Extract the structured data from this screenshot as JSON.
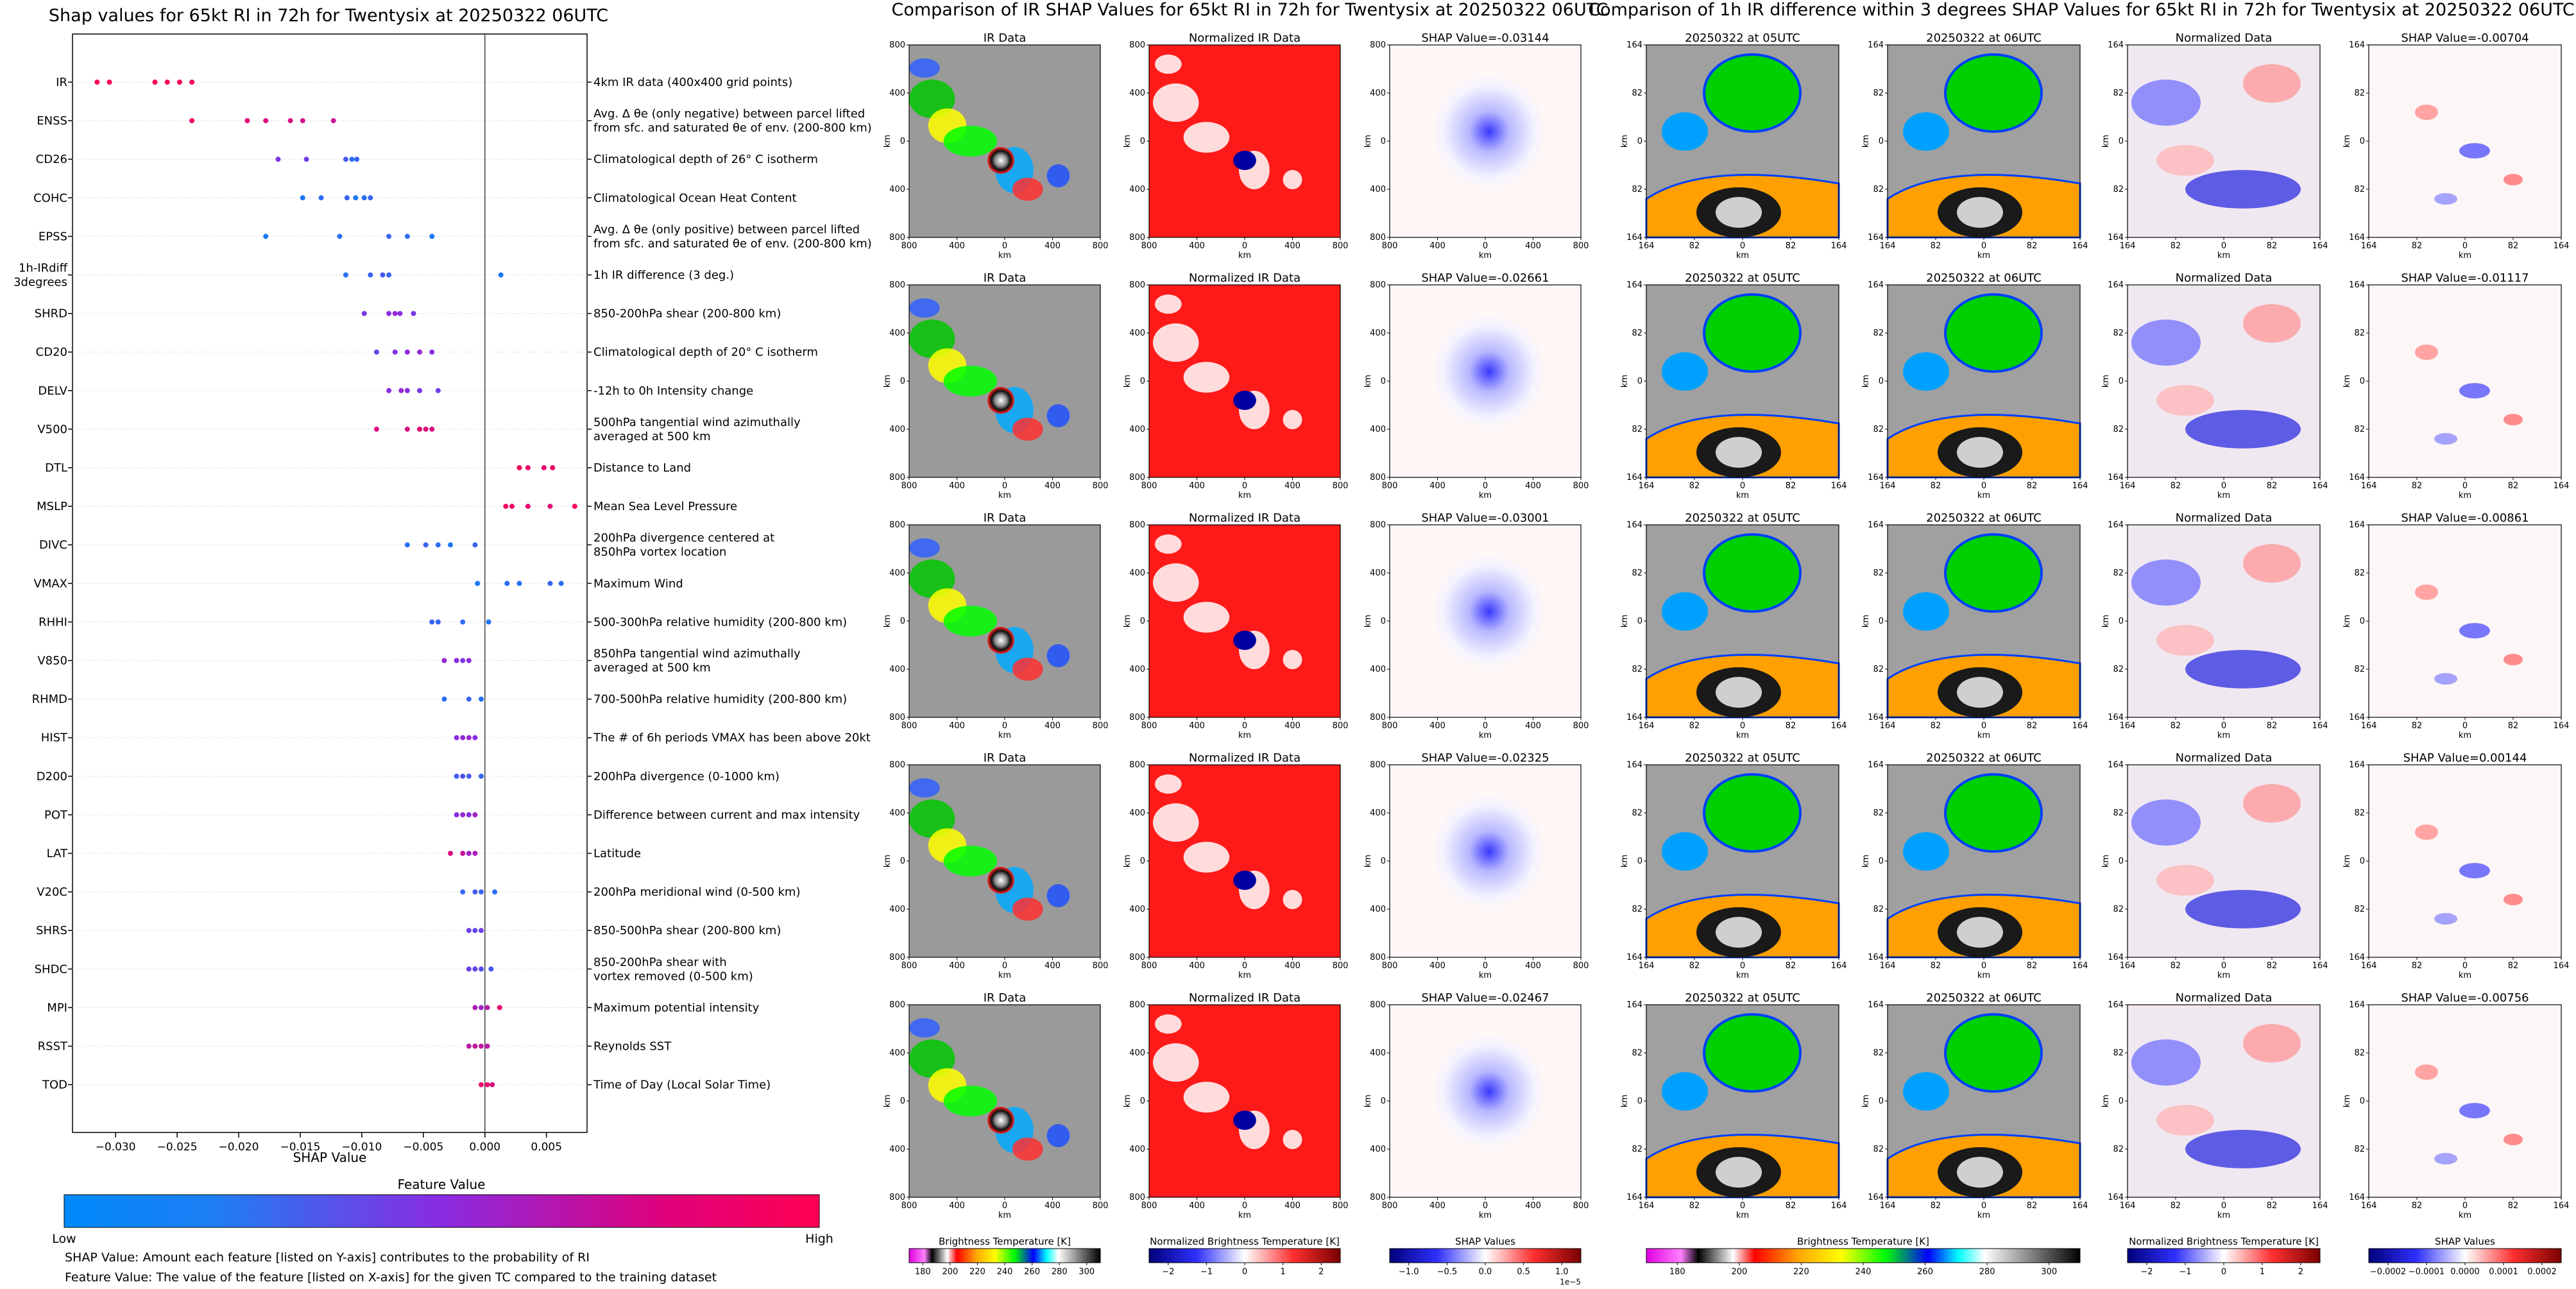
{
  "colors": {
    "feature_low": "#008afb",
    "feature_mid": "#8a2be2",
    "feature_high": "#ff0052",
    "axis": "#000000",
    "gridline": "#d9d9d9"
  },
  "chart_data": [
    {
      "type": "scatter",
      "name": "shap-beeswarm",
      "title": "Shap values for 65kt RI in 72h for Twentysix at 20250322 06UTC",
      "xlabel": "SHAP Value",
      "xlim": [
        -0.0335,
        0.0083
      ],
      "xticks": [
        -0.03,
        -0.025,
        -0.02,
        -0.015,
        -0.01,
        -0.005,
        0.0,
        0.005
      ],
      "xtick_labels": [
        "−0.030",
        "−0.025",
        "−0.020",
        "−0.015",
        "−0.010",
        "−0.005",
        "0.000",
        "0.005"
      ],
      "colorbar": {
        "title": "Feature Value",
        "low_label": "Low",
        "high_label": "High"
      },
      "notes": [
        "SHAP Value: Amount each feature [listed on Y-axis] contributes to the probability of RI",
        "Feature Value: The value of the feature [listed on X-axis] for the given TC compared to the training dataset"
      ],
      "features": [
        {
          "name": "IR",
          "description": "4km IR data (400x400 grid points)",
          "points": [
            [
              -0.0315,
              0.96
            ],
            [
              -0.0305,
              0.97
            ],
            [
              -0.0268,
              0.98
            ],
            [
              -0.0258,
              0.95
            ],
            [
              -0.0248,
              0.96
            ],
            [
              -0.0238,
              0.94
            ]
          ]
        },
        {
          "name": "ENSS",
          "description": "Avg. Δ θe (only negative) between parcel lifted\nfrom sfc. and saturated θe of env. (200-800 km)",
          "points": [
            [
              -0.0238,
              0.92
            ],
            [
              -0.0193,
              0.88
            ],
            [
              -0.0178,
              0.85
            ],
            [
              -0.0158,
              0.82
            ],
            [
              -0.0148,
              0.8
            ],
            [
              -0.0123,
              0.78
            ]
          ]
        },
        {
          "name": "CD26",
          "description": "Climatological depth of 26° C isotherm",
          "points": [
            [
              -0.0168,
              0.45
            ],
            [
              -0.0145,
              0.4
            ],
            [
              -0.0113,
              0.25
            ],
            [
              -0.0108,
              0.15
            ],
            [
              -0.0104,
              0.2
            ]
          ]
        },
        {
          "name": "COHC",
          "description": "Climatological Ocean Heat Content",
          "points": [
            [
              -0.0148,
              0.1
            ],
            [
              -0.0133,
              0.15
            ],
            [
              -0.0112,
              0.2
            ],
            [
              -0.0105,
              0.1
            ],
            [
              -0.0098,
              0.15
            ],
            [
              -0.0093,
              0.2
            ]
          ]
        },
        {
          "name": "EPSS",
          "description": "Avg. Δ θe (only positive) between parcel lifted\nfrom sfc. and saturated θe of env. (200-800 km)",
          "points": [
            [
              -0.0178,
              0.1
            ],
            [
              -0.0118,
              0.15
            ],
            [
              -0.0078,
              0.2
            ],
            [
              -0.0063,
              0.15
            ],
            [
              -0.0043,
              0.1
            ]
          ]
        },
        {
          "name": "1h-IRdiff 3degrees",
          "description": "1h IR difference (3 deg.)",
          "points": [
            [
              -0.0113,
              0.15
            ],
            [
              -0.0093,
              0.2
            ],
            [
              -0.0083,
              0.25
            ],
            [
              -0.0078,
              0.2
            ],
            [
              0.0013,
              0.1
            ]
          ]
        },
        {
          "name": "SHRD",
          "description": "850-200hPa shear (200-800 km)",
          "points": [
            [
              -0.0098,
              0.45
            ],
            [
              -0.0078,
              0.5
            ],
            [
              -0.0073,
              0.55
            ],
            [
              -0.0069,
              0.5
            ],
            [
              -0.0058,
              0.45
            ]
          ]
        },
        {
          "name": "CD20",
          "description": "Climatological depth of 20° C isotherm",
          "points": [
            [
              -0.0088,
              0.4
            ],
            [
              -0.0073,
              0.45
            ],
            [
              -0.0063,
              0.5
            ],
            [
              -0.0053,
              0.55
            ],
            [
              -0.0043,
              0.5
            ]
          ]
        },
        {
          "name": "DELV",
          "description": "-12h to 0h Intensity change",
          "points": [
            [
              -0.0078,
              0.5
            ],
            [
              -0.0068,
              0.55
            ],
            [
              -0.0063,
              0.5
            ],
            [
              -0.0053,
              0.45
            ],
            [
              -0.0038,
              0.4
            ]
          ]
        },
        {
          "name": "V500",
          "description": "500hPa tangential wind azimuthally\naveraged at 500 km",
          "points": [
            [
              -0.0088,
              0.85
            ],
            [
              -0.0063,
              0.82
            ],
            [
              -0.0053,
              0.88
            ],
            [
              -0.0048,
              0.86
            ],
            [
              -0.0043,
              0.84
            ]
          ]
        },
        {
          "name": "DTL",
          "description": "Distance to Land",
          "points": [
            [
              0.0028,
              0.95
            ],
            [
              0.0035,
              0.92
            ],
            [
              0.0048,
              0.9
            ],
            [
              0.0055,
              0.93
            ]
          ]
        },
        {
          "name": "MSLP",
          "description": "Mean Sea Level Pressure",
          "points": [
            [
              0.0017,
              0.95
            ],
            [
              0.0022,
              0.92
            ],
            [
              0.0035,
              0.9
            ],
            [
              0.0053,
              0.88
            ],
            [
              0.0073,
              0.95
            ]
          ]
        },
        {
          "name": "DIVC",
          "description": "200hPa divergence centered at\n850hPa vortex location",
          "points": [
            [
              -0.0063,
              0.15
            ],
            [
              -0.0048,
              0.2
            ],
            [
              -0.0038,
              0.15
            ],
            [
              -0.0028,
              0.1
            ],
            [
              -0.0008,
              0.2
            ]
          ]
        },
        {
          "name": "VMAX",
          "description": "Maximum Wind",
          "points": [
            [
              -0.0006,
              0.1
            ],
            [
              0.0018,
              0.15
            ],
            [
              0.0028,
              0.15
            ],
            [
              0.0053,
              0.2
            ],
            [
              0.0062,
              0.15
            ]
          ]
        },
        {
          "name": "RHHI",
          "description": "500-300hPa relative humidity (200-800 km)",
          "points": [
            [
              -0.0043,
              0.2
            ],
            [
              -0.0038,
              0.2
            ],
            [
              -0.0018,
              0.15
            ],
            [
              0.0003,
              0.1
            ]
          ]
        },
        {
          "name": "V850",
          "description": "850hPa tangential wind azimuthally\naveraged at 500 km",
          "points": [
            [
              -0.0033,
              0.55
            ],
            [
              -0.0023,
              0.5
            ],
            [
              -0.0018,
              0.45
            ],
            [
              -0.0013,
              0.5
            ]
          ]
        },
        {
          "name": "RHMD",
          "description": "700-500hPa relative humidity (200-800 km)",
          "points": [
            [
              -0.0033,
              0.15
            ],
            [
              -0.0013,
              0.2
            ],
            [
              -0.0003,
              0.15
            ]
          ]
        },
        {
          "name": "HIST",
          "description": "The # of 6h periods VMAX has been above 20kt",
          "points": [
            [
              -0.0023,
              0.5
            ],
            [
              -0.0018,
              0.52
            ],
            [
              -0.0013,
              0.55
            ],
            [
              -0.0008,
              0.5
            ]
          ]
        },
        {
          "name": "D200",
          "description": "200hPa divergence (0-1000 km)",
          "points": [
            [
              -0.0023,
              0.25
            ],
            [
              -0.0018,
              0.3
            ],
            [
              -0.0013,
              0.25
            ],
            [
              -0.0003,
              0.2
            ]
          ]
        },
        {
          "name": "POT",
          "description": "Difference between current and max intensity",
          "points": [
            [
              -0.0023,
              0.5
            ],
            [
              -0.0018,
              0.55
            ],
            [
              -0.0013,
              0.5
            ],
            [
              -0.0008,
              0.6
            ]
          ]
        },
        {
          "name": "LAT",
          "description": "Latitude",
          "points": [
            [
              -0.0028,
              0.85
            ],
            [
              -0.0018,
              0.75
            ],
            [
              -0.0013,
              0.6
            ],
            [
              -0.0008,
              0.65
            ]
          ]
        },
        {
          "name": "V20C",
          "description": "200hPa meridional wind (0-500 km)",
          "points": [
            [
              -0.0018,
              0.2
            ],
            [
              -0.0008,
              0.25
            ],
            [
              -0.0003,
              0.2
            ],
            [
              0.0008,
              0.15
            ]
          ]
        },
        {
          "name": "SHRS",
          "description": "850-500hPa shear (200-800 km)",
          "points": [
            [
              -0.0013,
              0.4
            ],
            [
              -0.0008,
              0.35
            ],
            [
              -0.0003,
              0.4
            ]
          ]
        },
        {
          "name": "SHDC",
          "description": "850-200hPa shear with\nvortex removed (0-500 km)",
          "points": [
            [
              -0.0013,
              0.4
            ],
            [
              -0.0008,
              0.35
            ],
            [
              -0.0003,
              0.3
            ],
            [
              0.0005,
              0.25
            ]
          ]
        },
        {
          "name": "MPI",
          "description": "Maximum potential intensity",
          "points": [
            [
              -0.0008,
              0.65
            ],
            [
              -0.0003,
              0.6
            ],
            [
              0.0002,
              0.7
            ],
            [
              0.0012,
              0.9
            ]
          ]
        },
        {
          "name": "RSST",
          "description": "Reynolds SST",
          "points": [
            [
              -0.0013,
              0.7
            ],
            [
              -0.0008,
              0.75
            ],
            [
              -0.0003,
              0.75
            ],
            [
              0.0002,
              0.7
            ]
          ]
        },
        {
          "name": "TOD",
          "description": "Time of Day (Local Solar Time)",
          "points": [
            [
              -0.0003,
              0.9
            ],
            [
              0.0002,
              0.9
            ],
            [
              0.0006,
              0.85
            ]
          ]
        }
      ]
    },
    {
      "type": "heatmap",
      "name": "ir-shap-panels",
      "title": "Comparison of IR SHAP Values for 65kt RI in 72h for Twentysix at 20250322 06UTC",
      "rows": [
        {
          "ir_title": "IR Data",
          "norm_title": "Normalized IR Data",
          "shap_title": "SHAP Value=-0.03144"
        },
        {
          "ir_title": "IR Data",
          "norm_title": "Normalized IR Data",
          "shap_title": "SHAP Value=-0.02661"
        },
        {
          "ir_title": "IR Data",
          "norm_title": "Normalized IR Data",
          "shap_title": "SHAP Value=-0.03001"
        },
        {
          "ir_title": "IR Data",
          "norm_title": "Normalized IR Data",
          "shap_title": "SHAP Value=-0.02325"
        },
        {
          "ir_title": "IR Data",
          "norm_title": "Normalized IR Data",
          "shap_title": "SHAP Value=-0.02467"
        }
      ],
      "axis_label": "km",
      "tick_labels": [
        "800",
        "400",
        "0",
        "400",
        "800"
      ],
      "colorbars": [
        {
          "label": "Brightness Temperature [K]",
          "ticks": [
            "180",
            "200",
            "220",
            "240",
            "260",
            "280",
            "300"
          ]
        },
        {
          "label": "Normalized Brightness Temperature [K]",
          "ticks": [
            "−2",
            "−1",
            "0",
            "1",
            "2"
          ]
        },
        {
          "label": "SHAP Values",
          "ticks": [
            "−1.0",
            "−0.5",
            "0.0",
            "0.5",
            "1.0"
          ],
          "exponent": "1e−5"
        }
      ]
    },
    {
      "type": "heatmap",
      "name": "ir-diff-panels",
      "title": "Comparison of 1h IR difference within 3 degrees SHAP Values for 65kt RI in 72h for Twentysix at 20250322 06UTC",
      "rows": [
        {
          "t1_title": "20250322 at 05UTC",
          "t2_title": "20250322 at 06UTC",
          "norm_title": "Normalized Data",
          "shap_title": "SHAP Value=-0.00704"
        },
        {
          "t1_title": "20250322 at 05UTC",
          "t2_title": "20250322 at 06UTC",
          "norm_title": "Normalized Data",
          "shap_title": "SHAP Value=-0.01117"
        },
        {
          "t1_title": "20250322 at 05UTC",
          "t2_title": "20250322 at 06UTC",
          "norm_title": "Normalized Data",
          "shap_title": "SHAP Value=-0.00861"
        },
        {
          "t1_title": "20250322 at 05UTC",
          "t2_title": "20250322 at 06UTC",
          "norm_title": "Normalized Data",
          "shap_title": "SHAP Value=0.00144"
        },
        {
          "t1_title": "20250322 at 05UTC",
          "t2_title": "20250322 at 06UTC",
          "norm_title": "Normalized Data",
          "shap_title": "SHAP Value=-0.00756"
        }
      ],
      "axis_label": "km",
      "tick_labels": [
        "164",
        "82",
        "0",
        "82",
        "164"
      ],
      "colorbars": [
        {
          "label": "Brightness Temperature [K]",
          "ticks": [
            "180",
            "200",
            "220",
            "240",
            "260",
            "280",
            "300"
          ]
        },
        {
          "label": "Normalized Brightness Temperature [K]",
          "ticks": [
            "−2",
            "−1",
            "0",
            "1",
            "2"
          ]
        },
        {
          "label": "SHAP Values",
          "ticks": [
            "−0.0002",
            "−0.0001",
            "0.0000",
            "0.0001",
            "0.0002"
          ]
        }
      ]
    }
  ]
}
